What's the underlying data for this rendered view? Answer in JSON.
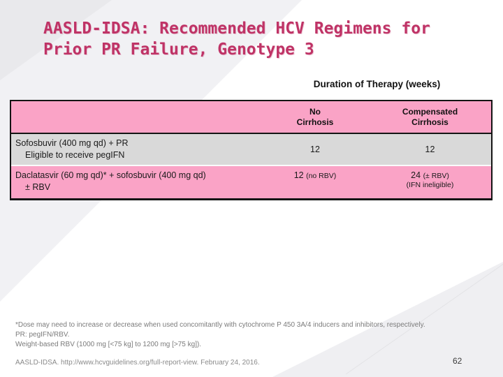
{
  "title": {
    "line1": "AASLD-IDSA: Recommended HCV Regimens for",
    "line2": "Prior PR Failure, Genotype 3"
  },
  "table": {
    "caption": "Duration of Therapy (weeks)",
    "headers": {
      "no_cirrhosis": {
        "line1": "No",
        "line2": "Cirrhosis"
      },
      "compensated": {
        "line1": "Compensated",
        "line2": "Cirrhosis"
      }
    },
    "rows": [
      {
        "label_line1": "Sofosbuvir (400 mg qd) + PR",
        "label_line2": "Eligible to receive pegIFN",
        "no_cirrhosis": "12",
        "compensated": "12"
      },
      {
        "label_line1": "Daclatasvir (60 mg qd)* + sofosbuvir (400 mg qd)",
        "label_line2": "± RBV",
        "no_cirrhosis_value": "12",
        "no_cirrhosis_note": "(no RBV)",
        "compensated_value": "24",
        "compensated_note": "(± RBV)",
        "compensated_subnote": "(IFN ineligible)"
      }
    ]
  },
  "footnotes": {
    "line1": "*Dose may need to increase or decrease when used concomitantly with cytochrome P 450 3A/4 inducers and inhibitors, respectively.",
    "line2": "PR: pegIFN/RBV.",
    "line3": "Weight-based RBV (1000 mg [<75 kg] to 1200 mg [>75 kg])."
  },
  "citation": "AASLD-IDSA. http://www.hcvguidelines.org/full-report-view. February 24, 2016.",
  "page_number": "62",
  "colors": {
    "accent_pink": "#faa3c6",
    "row_gray": "#d9d9d9",
    "title_pink": "#bf3366"
  }
}
